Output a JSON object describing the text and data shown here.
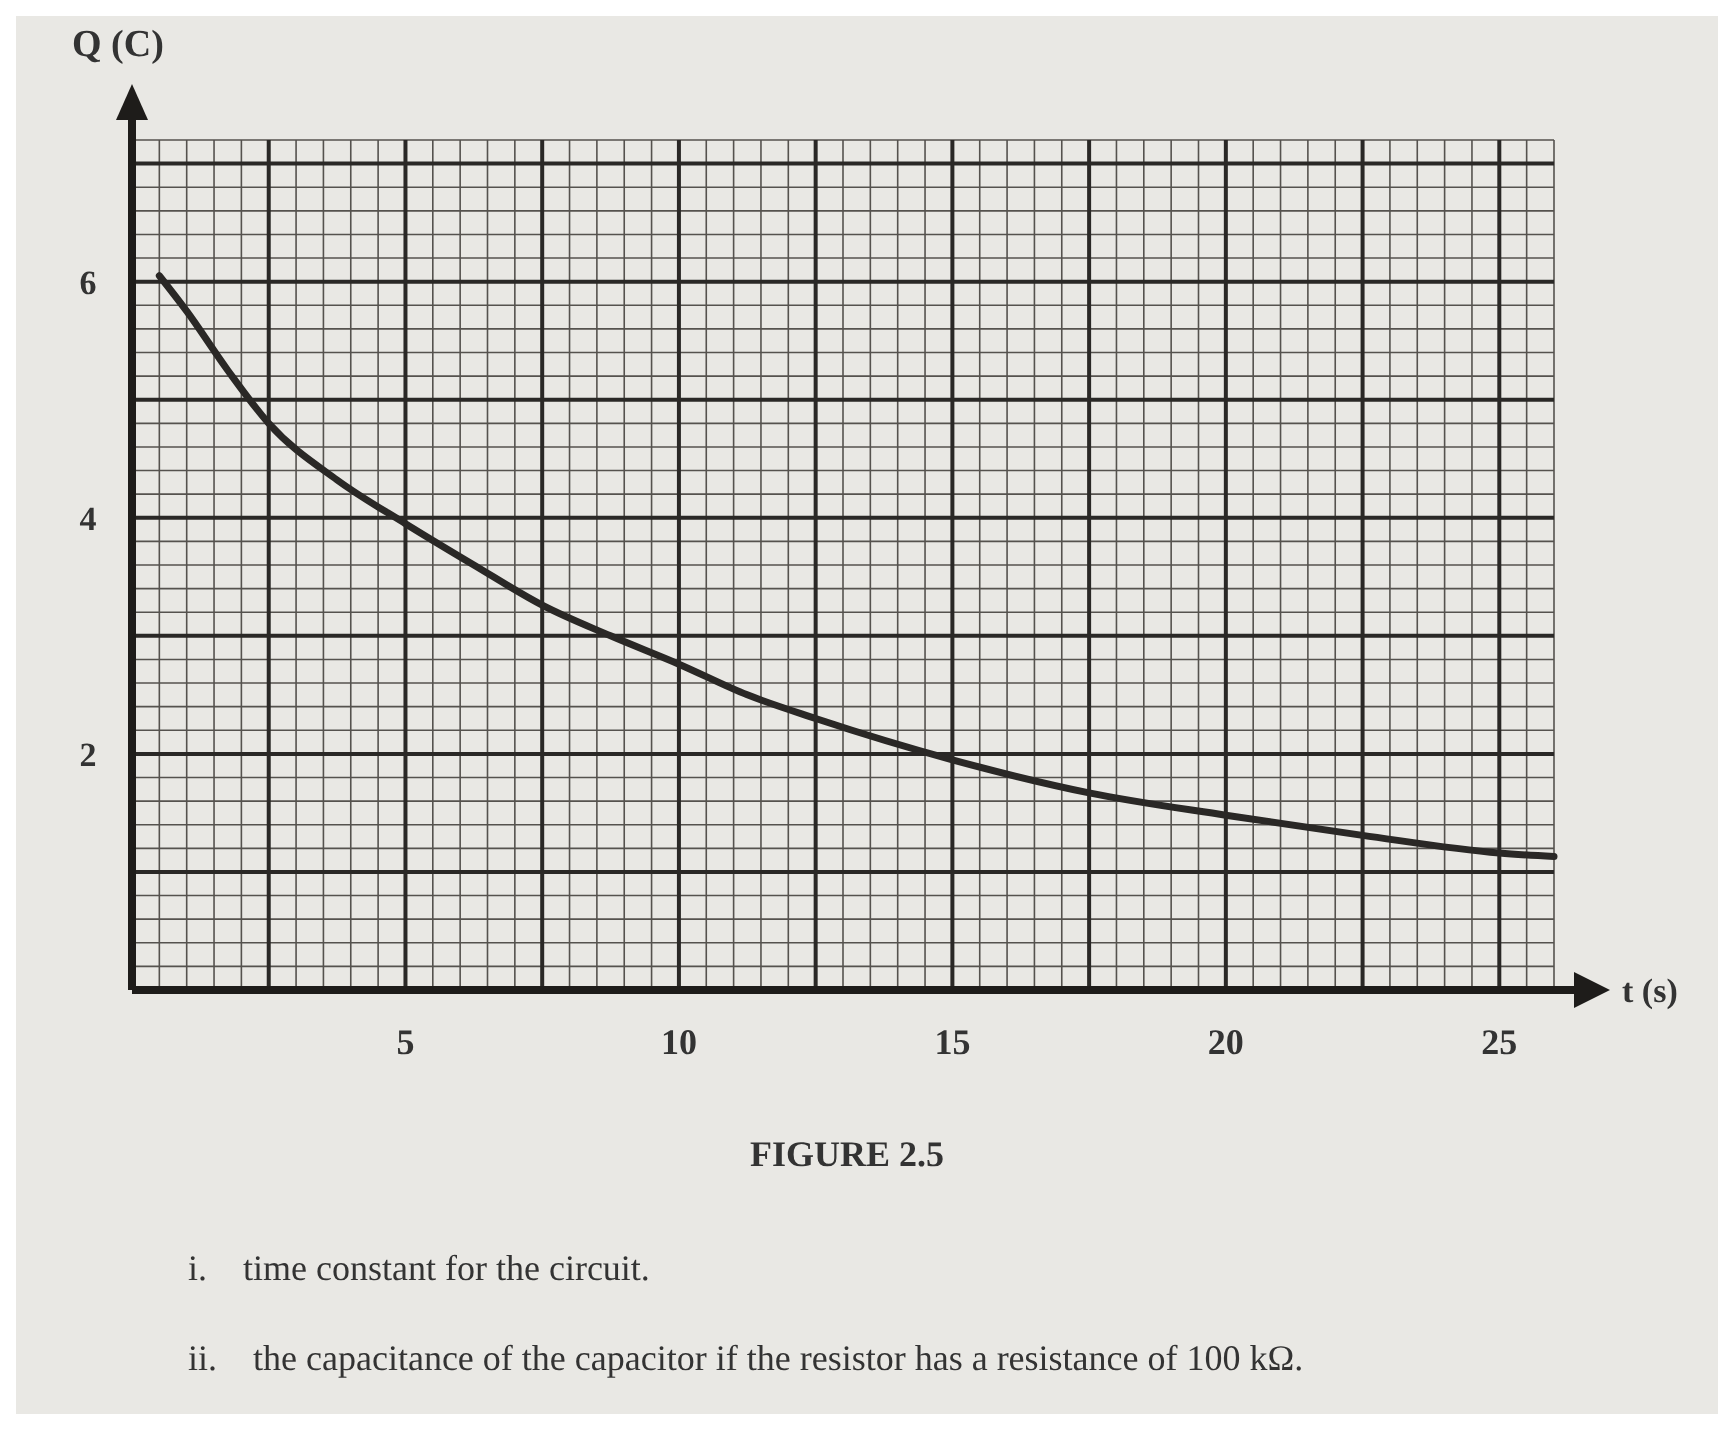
{
  "chart_data": {
    "type": "line",
    "xlabel": "t (s)",
    "ylabel": "Q (C)",
    "x": [
      0.5,
      1,
      1.75,
      2.5,
      3.75,
      5,
      6.25,
      7.5,
      8.75,
      10,
      11.25,
      12.5,
      15,
      17.5,
      20,
      22.5,
      25,
      26
    ],
    "series": [
      {
        "color": "#2a2826",
        "values": [
          6.05,
          5.75,
          5.25,
          4.8,
          4.32,
          3.95,
          3.6,
          3.26,
          3.0,
          2.76,
          2.5,
          2.3,
          1.95,
          1.67,
          1.48,
          1.31,
          1.16,
          1.13
        ]
      }
    ],
    "xlim": [
      0,
      26
    ],
    "ylim": [
      0,
      7.2
    ],
    "xticks": [
      {
        "value": 2.5,
        "label": null
      },
      5,
      {
        "value": 7.5,
        "label": null
      },
      10,
      {
        "value": 12.5,
        "label": null
      },
      15,
      {
        "value": 17.5,
        "label": null
      },
      20,
      {
        "value": 22.5,
        "label": null
      },
      25
    ],
    "yticks": [
      {
        "value": 1,
        "label": null
      },
      2,
      {
        "value": 3,
        "label": null
      },
      4,
      {
        "value": 5,
        "label": null
      },
      6,
      {
        "value": 7,
        "label": null
      }
    ],
    "grid": true,
    "marker": "none",
    "line_style": "solid",
    "annotations": [
      "FIGURE 2.5",
      "i. time constant for the circuit.",
      "ii. the capacitance of the capacitor if the resistor has a resistance of 100 kΩ."
    ]
  }
}
